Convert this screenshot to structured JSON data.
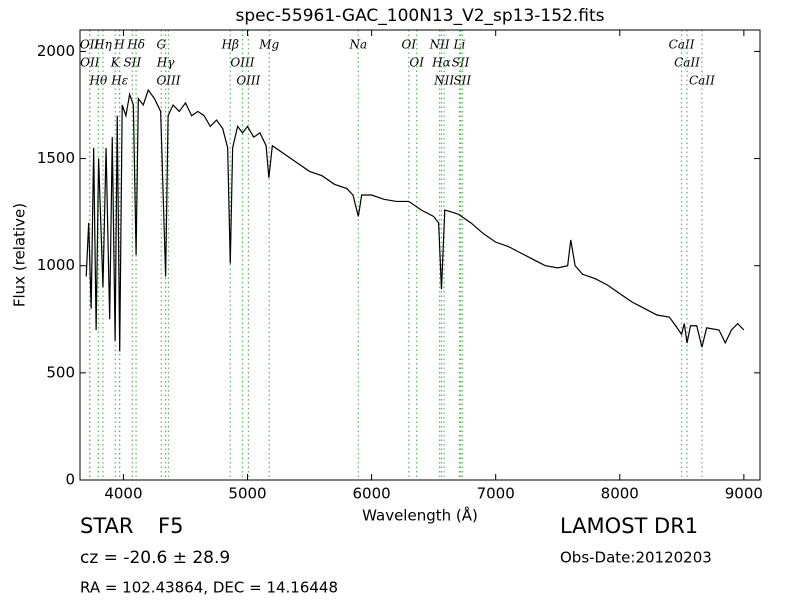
{
  "chart_data": {
    "type": "line",
    "title": "spec-55961-GAC_100N13_V2_sp13-152.fits",
    "x_label": "Wavelength (Å)",
    "y_label": "Flux (relative)",
    "xlim": [
      3650,
      9130
    ],
    "ylim": [
      0,
      2100
    ],
    "xticks": [
      4000,
      5000,
      6000,
      7000,
      8000,
      9000
    ],
    "yticks": [
      0,
      500,
      1000,
      1500,
      2000
    ],
    "series": [
      {
        "color": "#000000",
        "x": [
          3700,
          3720,
          3740,
          3760,
          3780,
          3800,
          3835,
          3860,
          3889,
          3910,
          3933,
          3950,
          3970,
          3990,
          4020,
          4050,
          4080,
          4102,
          4120,
          4160,
          4200,
          4250,
          4300,
          4340,
          4360,
          4400,
          4450,
          4500,
          4550,
          4600,
          4650,
          4700,
          4750,
          4800,
          4840,
          4861,
          4880,
          4920,
          4960,
          5000,
          5050,
          5100,
          5150,
          5172,
          5200,
          5300,
          5400,
          5500,
          5600,
          5700,
          5800,
          5850,
          5893,
          5920,
          6000,
          6100,
          6200,
          6300,
          6400,
          6500,
          6540,
          6563,
          6590,
          6650,
          6700,
          6800,
          6900,
          7000,
          7100,
          7200,
          7300,
          7400,
          7500,
          7580,
          7605,
          7640,
          7700,
          7800,
          7900,
          8000,
          8100,
          8200,
          8300,
          8400,
          8450,
          8498,
          8520,
          8542,
          8570,
          8620,
          8662,
          8700,
          8800,
          8850,
          8900,
          8950,
          9000
        ],
        "values": [
          950,
          1200,
          800,
          1550,
          700,
          1500,
          900,
          1550,
          750,
          1600,
          650,
          1700,
          600,
          1750,
          1700,
          1800,
          1750,
          1050,
          1780,
          1750,
          1820,
          1780,
          1720,
          950,
          1700,
          1750,
          1720,
          1760,
          1700,
          1720,
          1700,
          1650,
          1680,
          1640,
          1550,
          1010,
          1550,
          1650,
          1620,
          1650,
          1600,
          1620,
          1560,
          1410,
          1560,
          1520,
          1480,
          1440,
          1420,
          1380,
          1360,
          1330,
          1230,
          1330,
          1330,
          1310,
          1300,
          1300,
          1260,
          1230,
          1200,
          890,
          1260,
          1250,
          1240,
          1200,
          1150,
          1110,
          1090,
          1060,
          1030,
          1000,
          990,
          1000,
          1120,
          1000,
          960,
          940,
          910,
          870,
          830,
          800,
          770,
          760,
          720,
          680,
          730,
          640,
          720,
          720,
          620,
          710,
          700,
          640,
          700,
          730,
          700
        ]
      }
    ],
    "line_color": "#5cb85c",
    "lines": [
      {
        "label": "OII",
        "wavelength": 3727
      },
      {
        "label": "OII",
        "wavelength": 3729
      },
      {
        "label": "Hθ",
        "wavelength": 3798
      },
      {
        "label": "Hη",
        "wavelength": 3835
      },
      {
        "label": "K",
        "wavelength": 3934
      },
      {
        "label": "H",
        "wavelength": 3968
      },
      {
        "label": "Hε",
        "wavelength": 3970
      },
      {
        "label": "SII",
        "wavelength": 4072
      },
      {
        "label": "Hδ",
        "wavelength": 4102
      },
      {
        "label": "G",
        "wavelength": 4305
      },
      {
        "label": "Hγ",
        "wavelength": 4340
      },
      {
        "label": "OIII",
        "wavelength": 4363
      },
      {
        "label": "Hβ",
        "wavelength": 4861
      },
      {
        "label": "OIII",
        "wavelength": 4959
      },
      {
        "label": "OIII",
        "wavelength": 5007
      },
      {
        "label": "Mg",
        "wavelength": 5175
      },
      {
        "label": "Na",
        "wavelength": 5893
      },
      {
        "label": "OI",
        "wavelength": 6300
      },
      {
        "label": "OI",
        "wavelength": 6363
      },
      {
        "label": "NII",
        "wavelength": 6548
      },
      {
        "label": "Hα",
        "wavelength": 6563
      },
      {
        "label": "NII",
        "wavelength": 6584
      },
      {
        "label": "Li",
        "wavelength": 6708
      },
      {
        "label": "SII",
        "wavelength": 6717
      },
      {
        "label": "SII",
        "wavelength": 6731
      },
      {
        "label": "CaII",
        "wavelength": 8498
      },
      {
        "label": "CaII",
        "wavelength": 8542
      },
      {
        "label": "CaII",
        "wavelength": 8662
      }
    ],
    "info": {
      "object": "STAR",
      "subclass": "F5",
      "cz": "cz = -20.6 ± 28.9",
      "survey": "LAMOST DR1",
      "obs_date": "Obs-Date:20120203",
      "coords": "RA = 102.43864, DEC = 14.16448"
    }
  }
}
